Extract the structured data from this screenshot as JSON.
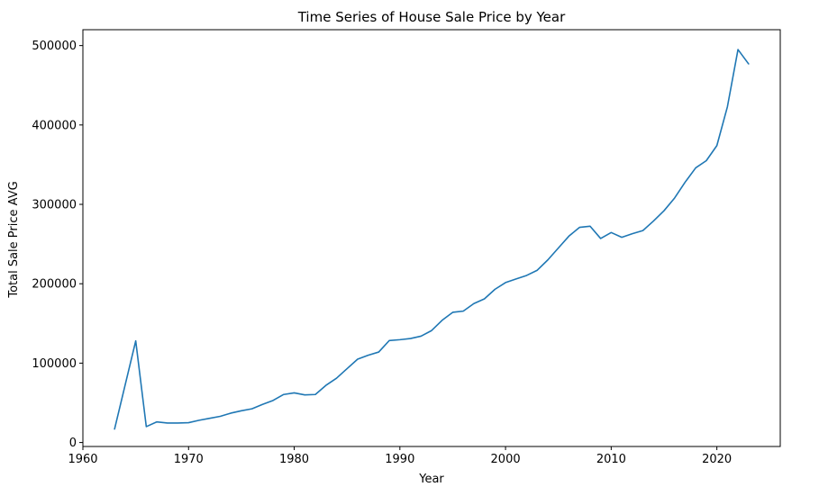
{
  "chart_data": {
    "type": "line",
    "title": "Time Series of House Sale Price by Year",
    "xlabel": "Year",
    "ylabel": "Total Sale Price AVG",
    "xlim": [
      1960,
      2026
    ],
    "ylim": [
      -5000,
      520000
    ],
    "xticks": [
      1960,
      1970,
      1980,
      1990,
      2000,
      2010,
      2020
    ],
    "yticks": [
      0,
      100000,
      200000,
      300000,
      400000,
      500000
    ],
    "grid": false,
    "line_color": "#1f77b4",
    "series": [
      {
        "x": [
          1963,
          1965,
          1966,
          1967,
          1968,
          1969,
          1970,
          1971,
          1972,
          1973,
          1974,
          1975,
          1976,
          1977,
          1978,
          1979,
          1980,
          1981,
          1982,
          1983,
          1984,
          1985,
          1986,
          1987,
          1988,
          1989,
          1990,
          1991,
          1992,
          1993,
          1994,
          1995,
          1996,
          1997,
          1998,
          1999,
          2000,
          2001,
          2002,
          2003,
          2004,
          2005,
          2006,
          2007,
          2008,
          2009,
          2010,
          2011,
          2012,
          2013,
          2014,
          2015,
          2016,
          2017,
          2018,
          2019,
          2020,
          2021,
          2022,
          2023
        ],
        "values": [
          17000,
          128000,
          20000,
          26000,
          24500,
          24500,
          25000,
          28000,
          30500,
          33000,
          37000,
          40000,
          42500,
          48000,
          53000,
          60500,
          62500,
          60000,
          60500,
          72000,
          81000,
          93000,
          105000,
          110000,
          114000,
          128500,
          129500,
          131000,
          134000,
          141000,
          154000,
          164000,
          165500,
          175000,
          181000,
          193000,
          201500,
          206000,
          210500,
          217000,
          230000,
          245000,
          260000,
          271000,
          272500,
          257000,
          264500,
          258500,
          263000,
          267000,
          279000,
          292000,
          308000,
          328000,
          346000,
          355000,
          374000,
          423000,
          495000,
          477000
        ]
      }
    ]
  }
}
